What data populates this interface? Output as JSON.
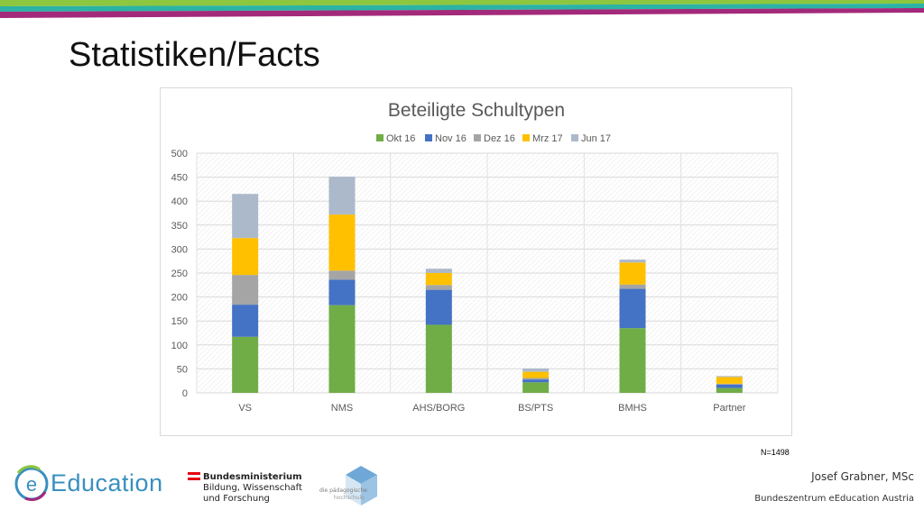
{
  "slide": {
    "title": "Statistiken/Facts",
    "note": "N=1498",
    "brand": "Education",
    "brand_letter": "e",
    "ministry_lines": [
      "Bundesministerium",
      "Bildung, Wissenschaft",
      "und Forschung"
    ],
    "ph_logo_text": "die pädagogische hochschule",
    "author": "Josef Grabner, MSc",
    "organization": "Bundeszentrum eEducation Austria",
    "colors": {
      "stripe_green": "#8dc63f",
      "stripe_teal": "#2bb3a4",
      "stripe_purple": "#a3297a",
      "brand_blue": "#3a8fc0",
      "ministry_red": "#e30613"
    }
  },
  "chart_data": {
    "type": "bar",
    "stacked": true,
    "title": "Beteiligte Schultypen",
    "categories": [
      "VS",
      "NMS",
      "AHS/BORG",
      "BS/PTS",
      "BMHS",
      "Partner"
    ],
    "series": [
      {
        "name": "Okt 16",
        "color": "#70ad47",
        "values": [
          117,
          183,
          142,
          22,
          135,
          10
        ]
      },
      {
        "name": "Nov 16",
        "color": "#4472c4",
        "values": [
          67,
          53,
          73,
          6,
          82,
          7
        ]
      },
      {
        "name": "Dez 16",
        "color": "#a5a5a5",
        "values": [
          62,
          19,
          10,
          3,
          9,
          2
        ]
      },
      {
        "name": "Mrz 17",
        "color": "#ffc000",
        "values": [
          77,
          117,
          25,
          13,
          46,
          14
        ]
      },
      {
        "name": "Jun 17",
        "color": "#acb9ca",
        "values": [
          92,
          79,
          9,
          7,
          6,
          2
        ]
      }
    ],
    "ylim": [
      0,
      500
    ],
    "yticks": [
      0,
      50,
      100,
      150,
      200,
      250,
      300,
      350,
      400,
      450,
      500
    ],
    "grid": true,
    "legend_position": "top",
    "xlabel": "",
    "ylabel": ""
  }
}
